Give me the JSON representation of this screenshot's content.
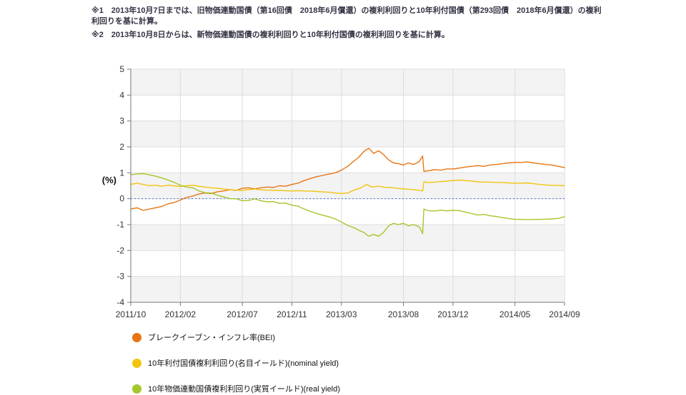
{
  "notes": {
    "note1": "※1　2013年10月7日までは、旧物価連動国債（第16回債　2018年6月償還）の複利利回りと10年利付国債（第293回債　2018年6月償還）の複利利回りを基に計算。",
    "note2": "※2　2013年10月8日からは、新物価連動国債の複利利回りと10年利付国債の複利利回りを基に計算。"
  },
  "chart_data": {
    "type": "line",
    "title": "",
    "ylabel": "(%)",
    "ylim": [
      -4,
      5
    ],
    "yticks": [
      5,
      4,
      3,
      2,
      1,
      0,
      -1,
      -2,
      -3,
      -4
    ],
    "x_range": [
      0,
      35
    ],
    "x_description": "points are [months since 2011/10, percent]",
    "grid": "alternating horizontal gray bands, light vertical gridlines at date ticks, dotted blue line at 0",
    "legend_position": "bottom-left",
    "xticks": [
      {
        "pos": 0,
        "label": "2011/10"
      },
      {
        "pos": 4,
        "label": "2012/02"
      },
      {
        "pos": 9,
        "label": "2012/07"
      },
      {
        "pos": 13,
        "label": "2012/11"
      },
      {
        "pos": 17,
        "label": "2013/03"
      },
      {
        "pos": 22,
        "label": "2013/08"
      },
      {
        "pos": 26,
        "label": "2013/12"
      },
      {
        "pos": 31,
        "label": "2014/05"
      },
      {
        "pos": 35,
        "label": "2014/09"
      }
    ],
    "style": {
      "band_fill": "#f3f3f3",
      "hgrid": "#dcdcdc",
      "vgrid": "#dcdcdc",
      "axis": "#777777",
      "tick_color": "#333333",
      "zero_line": "#4a6fdc"
    },
    "series": [
      {
        "name": "ブレークイーブン・インフレ率(BEI)",
        "color": "#e87511",
        "points": [
          [
            0,
            -0.4
          ],
          [
            0.5,
            -0.35
          ],
          [
            1,
            -0.45
          ],
          [
            1.5,
            -0.4
          ],
          [
            2,
            -0.35
          ],
          [
            2.5,
            -0.3
          ],
          [
            3,
            -0.2
          ],
          [
            3.5,
            -0.15
          ],
          [
            4,
            -0.05
          ],
          [
            4.5,
            0.05
          ],
          [
            5,
            0.1
          ],
          [
            5.5,
            0.18
          ],
          [
            6,
            0.22
          ],
          [
            6.5,
            0.2
          ],
          [
            7,
            0.27
          ],
          [
            7.5,
            0.3
          ],
          [
            8,
            0.35
          ],
          [
            8.5,
            0.32
          ],
          [
            9,
            0.4
          ],
          [
            9.5,
            0.42
          ],
          [
            10,
            0.38
          ],
          [
            10.5,
            0.42
          ],
          [
            11,
            0.45
          ],
          [
            11.5,
            0.43
          ],
          [
            12,
            0.5
          ],
          [
            12.5,
            0.48
          ],
          [
            13,
            0.55
          ],
          [
            13.5,
            0.6
          ],
          [
            14,
            0.7
          ],
          [
            14.5,
            0.78
          ],
          [
            15,
            0.85
          ],
          [
            15.5,
            0.9
          ],
          [
            16,
            0.95
          ],
          [
            16.5,
            1.0
          ],
          [
            17,
            1.1
          ],
          [
            17.5,
            1.25
          ],
          [
            18,
            1.45
          ],
          [
            18.4,
            1.6
          ],
          [
            18.8,
            1.82
          ],
          [
            19.2,
            1.95
          ],
          [
            19.6,
            1.75
          ],
          [
            20,
            1.85
          ],
          [
            20.4,
            1.7
          ],
          [
            20.8,
            1.5
          ],
          [
            21.2,
            1.38
          ],
          [
            21.6,
            1.35
          ],
          [
            22,
            1.3
          ],
          [
            22.4,
            1.38
          ],
          [
            22.8,
            1.32
          ],
          [
            23.1,
            1.38
          ],
          [
            23.3,
            1.45
          ],
          [
            23.55,
            1.65
          ],
          [
            23.65,
            1.05
          ],
          [
            24,
            1.08
          ],
          [
            24.5,
            1.12
          ],
          [
            25,
            1.1
          ],
          [
            25.5,
            1.15
          ],
          [
            26,
            1.15
          ],
          [
            26.5,
            1.18
          ],
          [
            27,
            1.22
          ],
          [
            27.5,
            1.25
          ],
          [
            28,
            1.28
          ],
          [
            28.5,
            1.25
          ],
          [
            29,
            1.3
          ],
          [
            29.5,
            1.32
          ],
          [
            30,
            1.35
          ],
          [
            30.5,
            1.38
          ],
          [
            31,
            1.4
          ],
          [
            31.5,
            1.4
          ],
          [
            32,
            1.42
          ],
          [
            32.5,
            1.38
          ],
          [
            33,
            1.35
          ],
          [
            33.5,
            1.32
          ],
          [
            34,
            1.3
          ],
          [
            34.5,
            1.25
          ],
          [
            35,
            1.2
          ]
        ]
      },
      {
        "name": "10年利付国債複利利回り(名目イールド)(nominal yield)",
        "color": "#f2c40f",
        "points": [
          [
            0,
            0.55
          ],
          [
            0.5,
            0.6
          ],
          [
            1,
            0.55
          ],
          [
            1.5,
            0.5
          ],
          [
            2,
            0.52
          ],
          [
            2.5,
            0.48
          ],
          [
            3,
            0.52
          ],
          [
            3.5,
            0.5
          ],
          [
            4,
            0.47
          ],
          [
            4.5,
            0.5
          ],
          [
            5,
            0.52
          ],
          [
            5.5,
            0.48
          ],
          [
            6,
            0.45
          ],
          [
            6.5,
            0.42
          ],
          [
            7,
            0.4
          ],
          [
            7.5,
            0.37
          ],
          [
            8,
            0.35
          ],
          [
            8.5,
            0.33
          ],
          [
            9,
            0.32
          ],
          [
            9.5,
            0.35
          ],
          [
            10,
            0.37
          ],
          [
            10.5,
            0.34
          ],
          [
            11,
            0.33
          ],
          [
            11.5,
            0.32
          ],
          [
            12,
            0.32
          ],
          [
            12.5,
            0.31
          ],
          [
            13,
            0.3
          ],
          [
            13.5,
            0.31
          ],
          [
            14,
            0.3
          ],
          [
            14.5,
            0.29
          ],
          [
            15,
            0.28
          ],
          [
            15.5,
            0.26
          ],
          [
            16,
            0.25
          ],
          [
            16.5,
            0.22
          ],
          [
            17,
            0.2
          ],
          [
            17.5,
            0.22
          ],
          [
            18,
            0.33
          ],
          [
            18.5,
            0.4
          ],
          [
            19,
            0.55
          ],
          [
            19.5,
            0.45
          ],
          [
            20,
            0.48
          ],
          [
            20.5,
            0.44
          ],
          [
            21,
            0.43
          ],
          [
            21.5,
            0.4
          ],
          [
            22,
            0.38
          ],
          [
            22.5,
            0.36
          ],
          [
            23,
            0.34
          ],
          [
            23.55,
            0.3
          ],
          [
            23.65,
            0.65
          ],
          [
            24,
            0.62
          ],
          [
            24.5,
            0.64
          ],
          [
            25,
            0.66
          ],
          [
            25.5,
            0.68
          ],
          [
            26,
            0.7
          ],
          [
            26.5,
            0.72
          ],
          [
            27,
            0.7
          ],
          [
            27.5,
            0.68
          ],
          [
            28,
            0.65
          ],
          [
            28.5,
            0.64
          ],
          [
            29,
            0.64
          ],
          [
            29.5,
            0.63
          ],
          [
            30,
            0.62
          ],
          [
            30.5,
            0.61
          ],
          [
            31,
            0.6
          ],
          [
            31.5,
            0.6
          ],
          [
            32,
            0.61
          ],
          [
            32.5,
            0.58
          ],
          [
            33,
            0.55
          ],
          [
            33.5,
            0.53
          ],
          [
            34,
            0.52
          ],
          [
            34.5,
            0.51
          ],
          [
            35,
            0.5
          ]
        ]
      },
      {
        "name": "10年物価連動国債複利利回り(実質イールド)(real yield)",
        "color": "#a4c72b",
        "points": [
          [
            0,
            0.93
          ],
          [
            0.5,
            0.95
          ],
          [
            1,
            0.97
          ],
          [
            1.5,
            0.92
          ],
          [
            2,
            0.87
          ],
          [
            2.5,
            0.8
          ],
          [
            3,
            0.72
          ],
          [
            3.5,
            0.63
          ],
          [
            4,
            0.52
          ],
          [
            4.5,
            0.45
          ],
          [
            5,
            0.42
          ],
          [
            5.5,
            0.3
          ],
          [
            6,
            0.23
          ],
          [
            6.5,
            0.22
          ],
          [
            7,
            0.13
          ],
          [
            7.5,
            0.07
          ],
          [
            8,
            0.0
          ],
          [
            8.5,
            0.0
          ],
          [
            9,
            -0.08
          ],
          [
            9.5,
            -0.07
          ],
          [
            10,
            -0.01
          ],
          [
            10.5,
            -0.08
          ],
          [
            11,
            -0.12
          ],
          [
            11.5,
            -0.11
          ],
          [
            12,
            -0.18
          ],
          [
            12.5,
            -0.17
          ],
          [
            13,
            -0.25
          ],
          [
            13.5,
            -0.29
          ],
          [
            14,
            -0.4
          ],
          [
            14.5,
            -0.49
          ],
          [
            15,
            -0.57
          ],
          [
            15.5,
            -0.64
          ],
          [
            16,
            -0.7
          ],
          [
            16.5,
            -0.78
          ],
          [
            17,
            -0.9
          ],
          [
            17.5,
            -1.03
          ],
          [
            18,
            -1.12
          ],
          [
            18.4,
            -1.22
          ],
          [
            18.8,
            -1.3
          ],
          [
            19.2,
            -1.45
          ],
          [
            19.6,
            -1.38
          ],
          [
            20,
            -1.45
          ],
          [
            20.4,
            -1.3
          ],
          [
            20.8,
            -1.05
          ],
          [
            21.2,
            -0.95
          ],
          [
            21.6,
            -1.0
          ],
          [
            22,
            -0.95
          ],
          [
            22.4,
            -1.05
          ],
          [
            22.8,
            -1.0
          ],
          [
            23.1,
            -1.05
          ],
          [
            23.3,
            -1.1
          ],
          [
            23.55,
            -1.35
          ],
          [
            23.65,
            -0.4
          ],
          [
            24,
            -0.46
          ],
          [
            24.5,
            -0.48
          ],
          [
            25,
            -0.44
          ],
          [
            25.5,
            -0.47
          ],
          [
            26,
            -0.45
          ],
          [
            26.5,
            -0.46
          ],
          [
            27,
            -0.52
          ],
          [
            27.5,
            -0.57
          ],
          [
            28,
            -0.63
          ],
          [
            28.5,
            -0.61
          ],
          [
            29,
            -0.66
          ],
          [
            29.5,
            -0.69
          ],
          [
            30,
            -0.73
          ],
          [
            30.5,
            -0.77
          ],
          [
            31,
            -0.8
          ],
          [
            31.5,
            -0.8
          ],
          [
            32,
            -0.81
          ],
          [
            32.5,
            -0.8
          ],
          [
            33,
            -0.8
          ],
          [
            33.5,
            -0.79
          ],
          [
            34,
            -0.78
          ],
          [
            34.5,
            -0.76
          ],
          [
            35,
            -0.7
          ]
        ]
      }
    ]
  }
}
